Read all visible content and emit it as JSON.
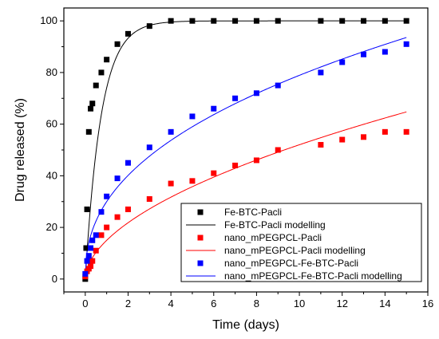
{
  "chart_data": {
    "type": "scatter",
    "title": "",
    "xlabel": "Time (days)",
    "ylabel": "Drug released (%)",
    "xlim": [
      -1,
      16
    ],
    "ylim": [
      -5,
      105
    ],
    "xticks": [
      0,
      2,
      4,
      6,
      8,
      10,
      12,
      14,
      16
    ],
    "yticks": [
      0,
      20,
      40,
      60,
      80,
      100
    ],
    "grid": false,
    "legend_position": "bottom-right",
    "series": [
      {
        "name": "Fe-BTC-Pacli",
        "kind": "markers",
        "color": "#000000",
        "x": [
          0,
          0.042,
          0.083,
          0.167,
          0.25,
          0.333,
          0.5,
          0.75,
          1,
          1.5,
          2,
          3,
          4,
          5,
          6,
          7,
          8,
          9,
          11,
          12,
          13,
          14,
          15
        ],
        "y": [
          0,
          12,
          27,
          57,
          66,
          68,
          75,
          80,
          85,
          91,
          95,
          98,
          100,
          100,
          100,
          100,
          100,
          100,
          100,
          100,
          100,
          100,
          100
        ]
      },
      {
        "name": "Fe-BTC-Pacli modelling",
        "kind": "line",
        "color": "#000000",
        "model": {
          "a": 100,
          "k": 1.35
        }
      },
      {
        "name": "nano_mPEGPCL-Pacli",
        "kind": "markers",
        "color": "#ff0000",
        "x": [
          0,
          0.083,
          0.167,
          0.25,
          0.333,
          0.5,
          0.75,
          1,
          1.5,
          2,
          3,
          4,
          5,
          6,
          7,
          8,
          9,
          11,
          12,
          13,
          14,
          15
        ],
        "y": [
          1,
          3,
          4,
          5,
          7,
          11,
          17,
          20,
          24,
          27,
          31,
          37,
          38,
          41,
          44,
          46,
          50,
          52,
          54,
          55,
          57,
          57
        ]
      },
      {
        "name": "nano_mPEGPCL-Pacli modelling",
        "kind": "line",
        "color": "#ff0000",
        "model": {
          "a": 15,
          "k": 0.54
        }
      },
      {
        "name": "nano_mPEGPCL-Fe-BTC-Pacli",
        "kind": "markers",
        "color": "#0000ff",
        "x": [
          0,
          0.083,
          0.167,
          0.25,
          0.333,
          0.5,
          0.75,
          1,
          1.5,
          2,
          3,
          4,
          5,
          6,
          7,
          8,
          9,
          11,
          12,
          13,
          14,
          15
        ],
        "y": [
          2,
          7,
          9,
          12,
          15,
          17,
          26,
          32,
          39,
          45,
          51,
          57,
          63,
          66,
          70,
          72,
          75,
          80,
          84,
          87,
          88,
          91
        ]
      },
      {
        "name": "nano_mPEGPCL-Fe-BTC-Pacli modelling",
        "kind": "line",
        "color": "#0000ff",
        "model": {
          "a": 30,
          "k": 0.42
        }
      }
    ]
  }
}
